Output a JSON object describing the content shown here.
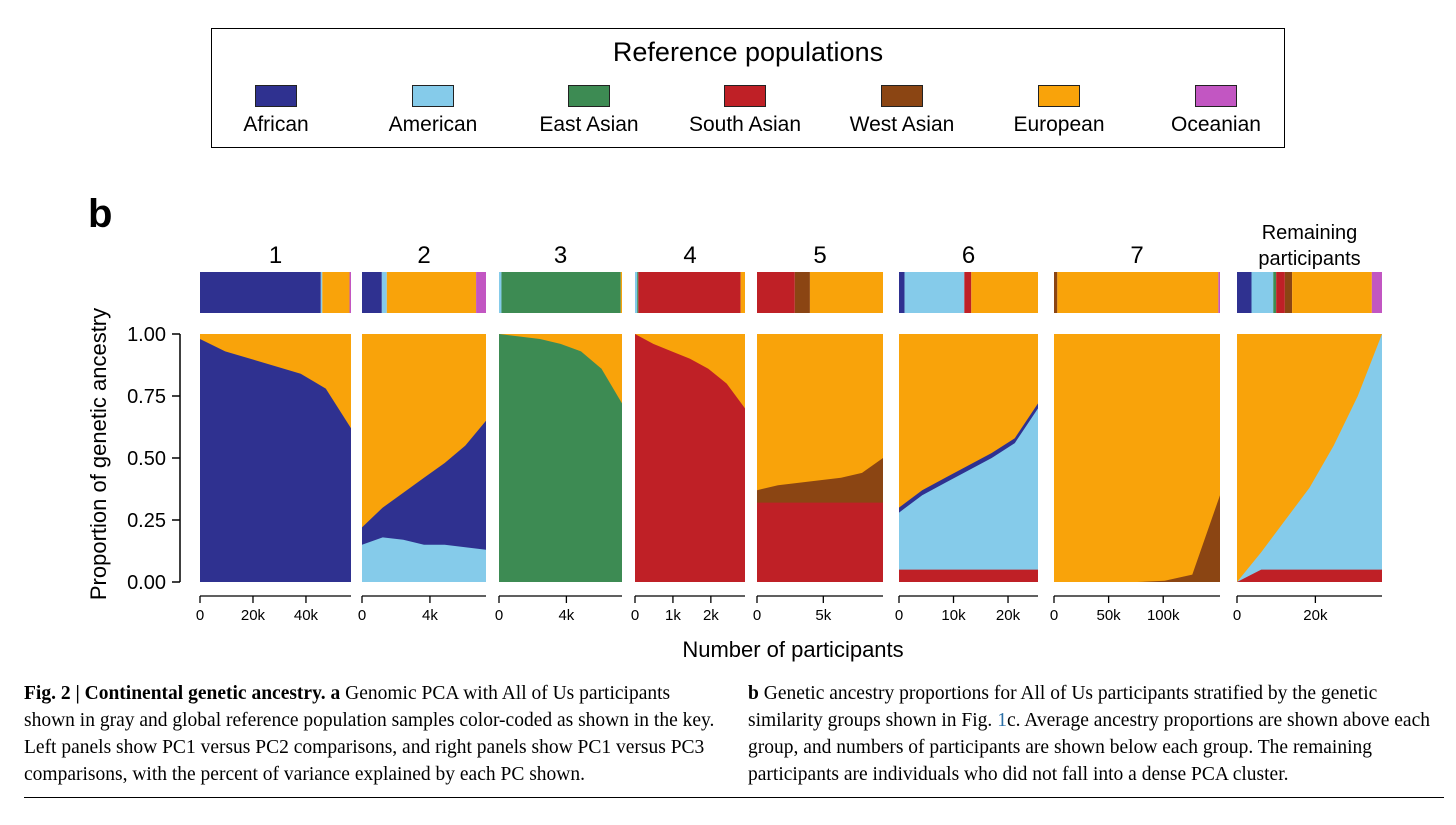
{
  "legend": {
    "title": "Reference populations",
    "items": [
      {
        "label": "African",
        "color": "#2f3190"
      },
      {
        "label": "American",
        "color": "#85cbea"
      },
      {
        "label": "East Asian",
        "color": "#3d8b53"
      },
      {
        "label": "South Asian",
        "color": "#bf2026"
      },
      {
        "label": "West Asian",
        "color": "#8b4513"
      },
      {
        "label": "European",
        "color": "#f9a30a"
      },
      {
        "label": "Oceanian",
        "color": "#c256c2"
      }
    ]
  },
  "panel_letter": "b",
  "chart_data": {
    "type": "area",
    "ylabel": "Proportion of genetic ancestry",
    "xlabel": "Number of participants",
    "ylim": [
      0,
      1
    ],
    "yticks": [
      "0.00",
      "0.25",
      "0.50",
      "0.75",
      "1.00"
    ],
    "ancestry_order": [
      "African",
      "American",
      "East Asian",
      "South Asian",
      "West Asian",
      "European",
      "Oceanian"
    ],
    "groups": [
      {
        "title": "1",
        "n_max": 57000,
        "xticks": [
          {
            "v": 0,
            "label": "0"
          },
          {
            "v": 20000,
            "label": "20k"
          },
          {
            "v": 40000,
            "label": "40k"
          }
        ],
        "avg": [
          0.8,
          0.01,
          0.0,
          0.0,
          0.0,
          0.18,
          0.01
        ],
        "bands": [
          {
            "ancestry": "African",
            "y0": [
              0.98,
              0.93,
              0.9,
              0.87,
              0.84,
              0.78,
              0.62
            ]
          }
        ]
      },
      {
        "title": "2",
        "n_max": 7300,
        "xticks": [
          {
            "v": 0,
            "label": "0"
          },
          {
            "v": 4000,
            "label": "4k"
          }
        ],
        "avg": [
          0.16,
          0.04,
          0.0,
          0.0,
          0.0,
          0.72,
          0.08
        ],
        "bands": [
          {
            "ancestry": "African",
            "y0": [
              0.22,
              0.3,
              0.36,
              0.42,
              0.48,
              0.55,
              0.65
            ]
          },
          {
            "ancestry": "American",
            "y0": [
              0.15,
              0.18,
              0.17,
              0.15,
              0.15,
              0.14,
              0.13
            ]
          }
        ]
      },
      {
        "title": "3",
        "n_max": 7300,
        "xticks": [
          {
            "v": 0,
            "label": "0"
          },
          {
            "v": 4000,
            "label": "4k"
          }
        ],
        "avg": [
          0.0,
          0.02,
          0.97,
          0.0,
          0.0,
          0.01,
          0.0
        ],
        "bands": [
          {
            "ancestry": "East Asian",
            "y0": [
              1.0,
              0.99,
              0.98,
              0.96,
              0.93,
              0.86,
              0.72
            ]
          }
        ]
      },
      {
        "title": "4",
        "n_max": 2900,
        "xticks": [
          {
            "v": 0,
            "label": "0"
          },
          {
            "v": 1000,
            "label": "1k"
          },
          {
            "v": 2000,
            "label": "2k"
          }
        ],
        "avg": [
          0.0,
          0.02,
          0.01,
          0.93,
          0.0,
          0.04,
          0.0
        ],
        "bands": [
          {
            "ancestry": "South Asian",
            "y0": [
              1.0,
              0.96,
              0.93,
              0.9,
              0.86,
              0.8,
              0.7
            ]
          }
        ]
      },
      {
        "title": "5",
        "n_max": 9500,
        "xticks": [
          {
            "v": 0,
            "label": "0"
          },
          {
            "v": 5000,
            "label": "5k"
          }
        ],
        "avg": [
          0.0,
          0.0,
          0.0,
          0.3,
          0.12,
          0.58,
          0.0
        ],
        "bands": [
          {
            "ancestry": "West Asian",
            "y0": [
              0.37,
              0.39,
              0.4,
              0.41,
              0.42,
              0.44,
              0.5
            ]
          },
          {
            "ancestry": "South Asian",
            "y0": [
              0.32,
              0.32,
              0.32,
              0.32,
              0.32,
              0.32,
              0.32
            ]
          }
        ]
      },
      {
        "title": "6",
        "n_max": 25500,
        "xticks": [
          {
            "v": 0,
            "label": "0"
          },
          {
            "v": 10000,
            "label": "10k"
          },
          {
            "v": 20000,
            "label": "20k"
          }
        ],
        "avg": [
          0.04,
          0.43,
          0.0,
          0.05,
          0.0,
          0.48,
          0.0
        ],
        "bands": [
          {
            "ancestry": "African",
            "y0": [
              0.3,
              0.37,
              0.42,
              0.47,
              0.52,
              0.58,
              0.72
            ]
          },
          {
            "ancestry": "American",
            "y0": [
              0.28,
              0.35,
              0.4,
              0.45,
              0.5,
              0.56,
              0.7
            ]
          },
          {
            "ancestry": "South Asian",
            "y0": [
              0.05,
              0.05,
              0.05,
              0.05,
              0.05,
              0.05,
              0.05
            ]
          }
        ]
      },
      {
        "title": "7",
        "n_max": 152000,
        "xticks": [
          {
            "v": 0,
            "label": "0"
          },
          {
            "v": 50000,
            "label": "50k"
          },
          {
            "v": 100000,
            "label": "100k"
          }
        ],
        "avg": [
          0.0,
          0.0,
          0.0,
          0.0,
          0.02,
          0.97,
          0.01
        ],
        "bands": [
          {
            "ancestry": "West Asian",
            "y0": [
              0.0,
              0.0,
              0.0,
              0.0,
              0.005,
              0.03,
              0.35
            ]
          }
        ]
      },
      {
        "title": "Remaining participants",
        "n_max": 37000,
        "xticks": [
          {
            "v": 0,
            "label": "0"
          },
          {
            "v": 20000,
            "label": "20k"
          }
        ],
        "avg": [
          0.1,
          0.15,
          0.02,
          0.06,
          0.05,
          0.55,
          0.07
        ],
        "bands": [
          {
            "ancestry": "American",
            "y0": [
              0.0,
              0.12,
              0.25,
              0.38,
              0.55,
              0.75,
              1.0
            ]
          },
          {
            "ancestry": "South Asian",
            "y0": [
              0.0,
              0.05,
              0.05,
              0.05,
              0.05,
              0.05,
              0.05
            ]
          }
        ]
      }
    ]
  },
  "caption": {
    "left_figure_label": "Fig. 2 | Continental genetic ancestry.",
    "left_panel_letter": "a",
    "left_text": "Genomic PCA with All of Us participants shown in gray and global reference population samples color-coded as shown in the key. Left panels show PC1 versus PC2 comparisons, and right panels show PC1 versus PC3 comparisons, with the percent of variance explained by each PC shown.",
    "right_panel_letter": "b",
    "right_text_1": "Genetic ancestry proportions for All of Us participants stratified by the genetic similarity groups shown in Fig.",
    "right_link": "1",
    "right_text_2": "c. Average ancestry proportions are shown above each group, and numbers of participants are shown below each group. The remaining participants are individuals who did not fall into a dense PCA cluster."
  }
}
